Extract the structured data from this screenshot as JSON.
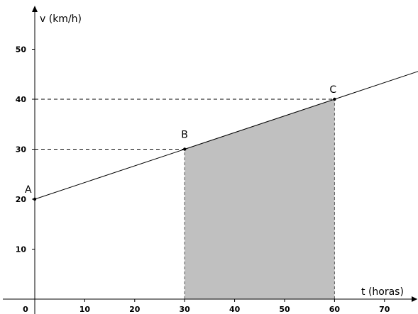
{
  "chart_data": {
    "type": "line",
    "xlabel": "t (horas)",
    "ylabel": "v (km/h)",
    "x_ticks": [
      "0",
      "10",
      "20",
      "30",
      "40",
      "50",
      "60",
      "70"
    ],
    "y_ticks": [
      "10",
      "20",
      "30",
      "40",
      "50"
    ],
    "xlim": [
      0,
      77
    ],
    "ylim": [
      0,
      59
    ],
    "grid": false,
    "line": {
      "x": [
        0,
        77
      ],
      "y": [
        20,
        45.67
      ]
    },
    "points": [
      {
        "label": "A",
        "x": 0,
        "y": 20
      },
      {
        "label": "B",
        "x": 30,
        "y": 30
      },
      {
        "label": "C",
        "x": 60,
        "y": 40
      }
    ],
    "shaded_region": {
      "x_from": 30,
      "x_to": 60,
      "color": "#c0c0c0"
    },
    "guide_lines": [
      {
        "from_x": 0,
        "to_x": 30,
        "y": 30
      },
      {
        "from_x": 0,
        "to_x": 60,
        "y": 40
      }
    ]
  }
}
